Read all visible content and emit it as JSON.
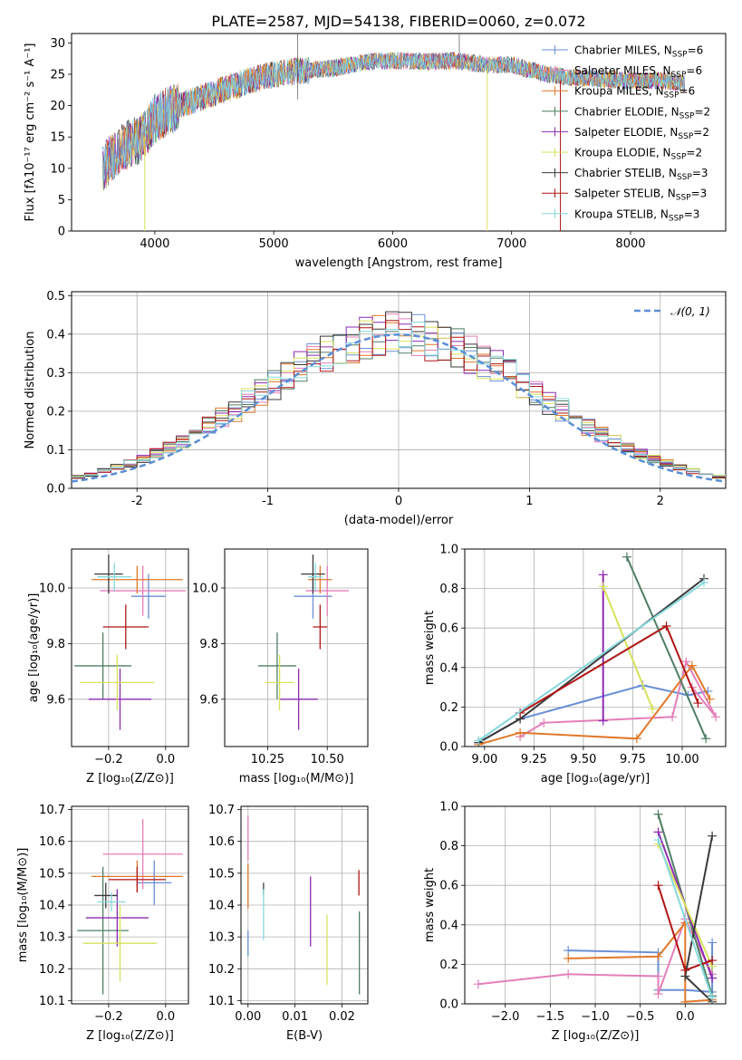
{
  "figure": {
    "title": "PLATE=2587, MJD=54138, FIBERID=0060, z=0.072"
  },
  "colors": {
    "chabrier_miles": "#6a8fd6",
    "salpeter_miles": "#e47fb8",
    "kroupa_miles": "#e0782a",
    "chabrier_elodie": "#4f7e64",
    "salpeter_elodie": "#8e2bb0",
    "kroupa_elodie": "#d8e25a",
    "chabrier_stelib": "#3a3a3a",
    "salpeter_stelib": "#b01616",
    "kroupa_stelib": "#86d8dc",
    "normal": "#5b8fd6"
  },
  "chart_data": [
    {
      "id": "spectrum",
      "type": "line",
      "xlabel": "wavelength [Angstrom, rest frame]",
      "ylabel": "Flux [fλ10⁻¹⁷ erg cm⁻² s⁻¹ A⁻¹]",
      "xlim": [
        3300,
        8800
      ],
      "ylim": [
        0,
        31.5
      ],
      "xticks": [
        4000,
        5000,
        6000,
        7000,
        8000
      ],
      "yticks": [
        0,
        5,
        10,
        15,
        20,
        25,
        30
      ],
      "legend_position": "top-right",
      "x_range_data": [
        3560,
        8460
      ],
      "series": [
        {
          "name": "Chabrier MILES, N_SSP=6",
          "label_main": "Chabrier MILES, N",
          "label_sub": "SSP",
          "label_end": "=6",
          "color_key": "chabrier_miles",
          "marker": "+"
        },
        {
          "name": "Salpeter MILES, N_SSP=6",
          "label_main": "Salpeter MILES, N",
          "label_sub": "SSP",
          "label_end": "=6",
          "color_key": "salpeter_miles",
          "marker": "+"
        },
        {
          "name": "Kroupa MILES, N_SSP=6",
          "label_main": "Kroupa MILES, N",
          "label_sub": "SSP",
          "label_end": "=6",
          "color_key": "kroupa_miles",
          "marker": "+"
        },
        {
          "name": "Chabrier ELODIE, N_SSP=2",
          "label_main": "Chabrier ELODIE, N",
          "label_sub": "SSP",
          "label_end": "=2",
          "color_key": "chabrier_elodie",
          "marker": "+"
        },
        {
          "name": "Salpeter ELODIE, N_SSP=2",
          "label_main": "Salpeter ELODIE, N",
          "label_sub": "SSP",
          "label_end": "=2",
          "color_key": "salpeter_elodie",
          "marker": "+"
        },
        {
          "name": "Kroupa ELODIE, N_SSP=2",
          "label_main": "Kroupa ELODIE, N",
          "label_sub": "SSP",
          "label_end": "=2",
          "color_key": "kroupa_elodie",
          "marker": "+"
        },
        {
          "name": "Chabrier STELIB, N_SSP=3",
          "label_main": "Chabrier STELIB, N",
          "label_sub": "SSP",
          "label_end": "=3",
          "color_key": "chabrier_stelib",
          "marker": "+"
        },
        {
          "name": "Salpeter STELIB, N_SSP=3",
          "label_main": "Salpeter STELIB, N",
          "label_sub": "SSP",
          "label_end": "=3",
          "color_key": "salpeter_stelib",
          "marker": "+"
        },
        {
          "name": "Kroupa STELIB, N_SSP=3",
          "label_main": "Kroupa STELIB, N",
          "label_sub": "SSP",
          "label_end": "=3",
          "color_key": "kroupa_stelib",
          "marker": "+"
        }
      ],
      "continuum": [
        [
          3560,
          10
        ],
        [
          3700,
          13
        ],
        [
          3900,
          15
        ],
        [
          4000,
          18
        ],
        [
          4200,
          20
        ],
        [
          4500,
          22
        ],
        [
          4800,
          24
        ],
        [
          5000,
          25
        ],
        [
          5200,
          25.5
        ],
        [
          5500,
          26
        ],
        [
          5800,
          27
        ],
        [
          6000,
          27.2
        ],
        [
          6300,
          27
        ],
        [
          6500,
          27.2
        ],
        [
          6800,
          26.5
        ],
        [
          7000,
          26.5
        ],
        [
          7300,
          25
        ],
        [
          7500,
          24.5
        ],
        [
          8000,
          24
        ],
        [
          8300,
          24
        ],
        [
          8460,
          23.5
        ]
      ]
    },
    {
      "id": "residuals",
      "type": "histogram",
      "xlabel": "(data-model)/error",
      "ylabel": "Normed distribution",
      "xlim": [
        -2.5,
        2.5
      ],
      "ylim": [
        0,
        0.51
      ],
      "xticks": [
        -2,
        -1,
        0,
        1,
        2
      ],
      "yticks": [
        0.0,
        0.1,
        0.2,
        0.3,
        0.4,
        0.5
      ],
      "grid": true,
      "bin_width": 0.1,
      "legend": [
        {
          "name": "N(0, 1)",
          "label": "𝒩(0, 1)",
          "color_key": "normal",
          "style": "dashed"
        }
      ],
      "legend_position": "top-right"
    },
    {
      "id": "age_vs_Z",
      "type": "errorbar",
      "xlabel": "Z [log₁₀(Z/Z⊙)]",
      "ylabel": "age  [log₁₀(age/yr)]",
      "xlim": [
        -0.33,
        0.08
      ],
      "ylim": [
        9.43,
        10.14
      ],
      "xticks": [
        -0.2,
        0.0
      ],
      "xticklabels": [
        "−0.2",
        "0.0"
      ],
      "yticks": [
        9.6,
        9.8,
        10.0
      ],
      "yticklabels": [
        "9.6",
        "9.8",
        "10.0"
      ],
      "grid": true,
      "points": [
        {
          "color_key": "chabrier_miles",
          "x": -0.06,
          "xerr": 0.06,
          "y": 9.97,
          "yerr": 0.08
        },
        {
          "color_key": "salpeter_miles",
          "x": -0.08,
          "xerr": 0.15,
          "y": 9.99,
          "yerr": 0.09
        },
        {
          "color_key": "kroupa_miles",
          "x": -0.1,
          "xerr": 0.16,
          "y": 10.03,
          "yerr": 0.05
        },
        {
          "color_key": "chabrier_elodie",
          "x": -0.22,
          "xerr": 0.1,
          "y": 9.72,
          "yerr": 0.12
        },
        {
          "color_key": "salpeter_elodie",
          "x": -0.16,
          "xerr": 0.11,
          "y": 9.6,
          "yerr": 0.11
        },
        {
          "color_key": "kroupa_elodie",
          "x": -0.17,
          "xerr": 0.13,
          "y": 9.66,
          "yerr": 0.1
        },
        {
          "color_key": "chabrier_stelib",
          "x": -0.2,
          "xerr": 0.05,
          "y": 10.05,
          "yerr": 0.07
        },
        {
          "color_key": "salpeter_stelib",
          "x": -0.14,
          "xerr": 0.08,
          "y": 9.86,
          "yerr": 0.08
        },
        {
          "color_key": "kroupa_stelib",
          "x": -0.18,
          "xerr": 0.06,
          "y": 10.04,
          "yerr": 0.05
        }
      ]
    },
    {
      "id": "age_vs_mass",
      "type": "errorbar",
      "xlabel": "mass [log₁₀(M/M⊙)]",
      "ylabel": "",
      "xlim": [
        10.07,
        10.67
      ],
      "ylim": [
        9.43,
        10.14
      ],
      "xticks": [
        10.25,
        10.5
      ],
      "xticklabels": [
        "10.25",
        "10.50"
      ],
      "yticks": [
        9.6,
        9.8,
        10.0
      ],
      "yticklabels": [
        "9.6",
        "9.8",
        "10.0"
      ],
      "grid": true,
      "points": [
        {
          "color_key": "chabrier_miles",
          "x": 10.44,
          "xerr": 0.08,
          "y": 9.97,
          "yerr": 0.08
        },
        {
          "color_key": "salpeter_miles",
          "x": 10.5,
          "xerr": 0.09,
          "y": 9.99,
          "yerr": 0.09
        },
        {
          "color_key": "kroupa_miles",
          "x": 10.47,
          "xerr": 0.05,
          "y": 10.03,
          "yerr": 0.05
        },
        {
          "color_key": "chabrier_elodie",
          "x": 10.29,
          "xerr": 0.08,
          "y": 9.72,
          "yerr": 0.12
        },
        {
          "color_key": "salpeter_elodie",
          "x": 10.38,
          "xerr": 0.08,
          "y": 9.6,
          "yerr": 0.11
        },
        {
          "color_key": "kroupa_elodie",
          "x": 10.3,
          "xerr": 0.06,
          "y": 9.66,
          "yerr": 0.1
        },
        {
          "color_key": "chabrier_stelib",
          "x": 10.44,
          "xerr": 0.05,
          "y": 10.05,
          "yerr": 0.07
        },
        {
          "color_key": "salpeter_stelib",
          "x": 10.47,
          "xerr": 0.03,
          "y": 9.86,
          "yerr": 0.08
        },
        {
          "color_key": "kroupa_stelib",
          "x": 10.45,
          "xerr": 0.03,
          "y": 10.04,
          "yerr": 0.05
        }
      ]
    },
    {
      "id": "weight_vs_age",
      "type": "line",
      "xlabel": "age  [log₁₀(age/yr)]",
      "ylabel": "mass weight",
      "xlim": [
        8.9,
        10.22
      ],
      "ylim": [
        0,
        1.0
      ],
      "xticks": [
        9.0,
        9.25,
        9.5,
        9.75,
        10.0
      ],
      "xticklabels": [
        "9.00",
        "9.25",
        "9.50",
        "9.75",
        "10.00"
      ],
      "yticks": [
        0.0,
        0.2,
        0.4,
        0.6,
        0.8,
        1.0
      ],
      "grid": true,
      "series": [
        {
          "color_key": "chabrier_miles",
          "x": [
            8.97,
            9.18,
            9.8,
            10.03,
            10.13
          ],
          "y": [
            0.02,
            0.14,
            0.31,
            0.26,
            0.28
          ]
        },
        {
          "color_key": "salpeter_miles",
          "x": [
            9.18,
            9.3,
            9.95,
            10.02,
            10.17,
            10.05
          ],
          "y": [
            0.05,
            0.12,
            0.15,
            0.43,
            0.15,
            0.3
          ]
        },
        {
          "color_key": "kroupa_miles",
          "x": [
            8.97,
            9.18,
            9.77,
            10.05,
            10.14
          ],
          "y": [
            0.01,
            0.07,
            0.04,
            0.41,
            0.24
          ]
        },
        {
          "color_key": "chabrier_elodie",
          "x": [
            9.72,
            10.12
          ],
          "y": [
            0.96,
            0.04
          ]
        },
        {
          "color_key": "salpeter_elodie",
          "x": [
            9.6,
            9.6
          ],
          "y": [
            0.87,
            0.13
          ]
        },
        {
          "color_key": "kroupa_elodie",
          "x": [
            9.6,
            9.85
          ],
          "y": [
            0.81,
            0.19
          ]
        },
        {
          "color_key": "chabrier_stelib",
          "x": [
            8.97,
            9.18,
            10.11
          ],
          "y": [
            0.02,
            0.14,
            0.85
          ]
        },
        {
          "color_key": "salpeter_stelib",
          "x": [
            9.18,
            9.92,
            10.08
          ],
          "y": [
            0.17,
            0.61,
            0.22
          ]
        },
        {
          "color_key": "kroupa_stelib",
          "x": [
            8.97,
            10.11
          ],
          "y": [
            0.03,
            0.83
          ]
        }
      ]
    },
    {
      "id": "mass_vs_Z",
      "type": "errorbar",
      "xlabel": "Z [log₁₀(Z/Z⊙)]",
      "ylabel": "mass [log₁₀(M/M⊙)]",
      "xlim": [
        -0.33,
        0.08
      ],
      "ylim": [
        10.09,
        10.71
      ],
      "xticks": [
        -0.2,
        0.0
      ],
      "xticklabels": [
        "−0.2",
        "0.0"
      ],
      "yticks": [
        10.1,
        10.2,
        10.3,
        10.4,
        10.5,
        10.6,
        10.7
      ],
      "yticklabels": [
        "10.1",
        "10.2",
        "10.3",
        "10.4",
        "10.5",
        "10.6",
        "10.7"
      ],
      "grid": true,
      "points": [
        {
          "color_key": "chabrier_miles",
          "x": -0.04,
          "xerr": 0.06,
          "y": 10.47,
          "yerr": 0.07
        },
        {
          "color_key": "salpeter_miles",
          "x": -0.08,
          "xerr": 0.14,
          "y": 10.56,
          "yerr": 0.11
        },
        {
          "color_key": "kroupa_miles",
          "x": -0.1,
          "xerr": 0.16,
          "y": 10.49,
          "yerr": 0.05
        },
        {
          "color_key": "chabrier_elodie",
          "x": -0.22,
          "xerr": 0.09,
          "y": 10.32,
          "yerr": 0.2
        },
        {
          "color_key": "salpeter_elodie",
          "x": -0.17,
          "xerr": 0.11,
          "y": 10.36,
          "yerr": 0.09
        },
        {
          "color_key": "kroupa_elodie",
          "x": -0.16,
          "xerr": 0.13,
          "y": 10.28,
          "yerr": 0.12
        },
        {
          "color_key": "chabrier_stelib",
          "x": -0.21,
          "xerr": 0.04,
          "y": 10.43,
          "yerr": 0.04
        },
        {
          "color_key": "salpeter_stelib",
          "x": -0.1,
          "xerr": 0.1,
          "y": 10.48,
          "yerr": 0.04
        },
        {
          "color_key": "kroupa_stelib",
          "x": -0.19,
          "xerr": 0.05,
          "y": 10.41,
          "yerr": 0.03
        }
      ]
    },
    {
      "id": "mass_vs_EBV",
      "type": "errorbar",
      "xlabel": "E(B-V)",
      "ylabel": "",
      "xlim": [
        -0.0015,
        0.0255
      ],
      "ylim": [
        10.09,
        10.71
      ],
      "xticks": [
        0.0,
        0.01,
        0.02
      ],
      "xticklabels": [
        "0.00",
        "0.01",
        "0.02"
      ],
      "yticks": [
        10.1,
        10.2,
        10.3,
        10.4,
        10.5,
        10.6,
        10.7
      ],
      "yticklabels": [
        "10.1",
        "10.2",
        "10.3",
        "10.4",
        "10.5",
        "10.6",
        "10.7"
      ],
      "grid": true,
      "points": [
        {
          "color_key": "chabrier_miles",
          "x": 0.0,
          "xerr": 0,
          "y": 10.28,
          "yerr": 0.04
        },
        {
          "color_key": "salpeter_miles",
          "x": 0.0,
          "xerr": 0,
          "y": 10.61,
          "yerr": 0.07
        },
        {
          "color_key": "kroupa_miles",
          "x": 0.0,
          "xerr": 0,
          "y": 10.46,
          "yerr": 0.07
        },
        {
          "color_key": "chabrier_elodie",
          "x": 0.0237,
          "xerr": 0,
          "y": 10.25,
          "yerr": 0.13
        },
        {
          "color_key": "salpeter_elodie",
          "x": 0.0133,
          "xerr": 0,
          "y": 10.38,
          "yerr": 0.11
        },
        {
          "color_key": "kroupa_elodie",
          "x": 0.0168,
          "xerr": 0,
          "y": 10.26,
          "yerr": 0.11
        },
        {
          "color_key": "chabrier_stelib",
          "x": 0.0033,
          "xerr": 0,
          "y": 10.45,
          "yerr": 0.02
        },
        {
          "color_key": "salpeter_stelib",
          "x": 0.0236,
          "xerr": 0,
          "y": 10.47,
          "yerr": 0.04
        },
        {
          "color_key": "kroupa_stelib",
          "x": 0.0033,
          "xerr": 0,
          "y": 10.37,
          "yerr": 0.08
        }
      ]
    },
    {
      "id": "weight_vs_Z",
      "type": "line",
      "xlabel": "Z [log₁₀(Z/Z⊙)]",
      "ylabel": "mass weight",
      "xlim": [
        -2.45,
        0.45
      ],
      "ylim": [
        0,
        1.0
      ],
      "xticks": [
        -2.0,
        -1.5,
        -1.0,
        -0.5,
        0.0
      ],
      "xticklabels": [
        "−2.0",
        "−1.5",
        "−1.0",
        "−0.5",
        "0.0"
      ],
      "yticks": [
        0.0,
        0.2,
        0.4,
        0.6,
        0.8,
        1.0
      ],
      "grid": true,
      "series": [
        {
          "color_key": "chabrier_miles",
          "x": [
            -1.3,
            -0.3,
            -0.3,
            0.0,
            0.3,
            0.3
          ],
          "y": [
            0.27,
            0.26,
            0.07,
            0.07,
            0.06,
            0.31
          ]
        },
        {
          "color_key": "salpeter_miles",
          "x": [
            -2.3,
            -1.3,
            -0.3,
            -0.3,
            0.0,
            0.3
          ],
          "y": [
            0.1,
            0.15,
            0.14,
            0.05,
            0.43,
            0.15
          ]
        },
        {
          "color_key": "kroupa_miles",
          "x": [
            -1.3,
            -0.3,
            0.0,
            0.0,
            0.3
          ],
          "y": [
            0.23,
            0.24,
            0.41,
            0.01,
            0.02
          ]
        },
        {
          "color_key": "chabrier_elodie",
          "x": [
            -0.3,
            0.3
          ],
          "y": [
            0.96,
            0.04
          ]
        },
        {
          "color_key": "salpeter_elodie",
          "x": [
            -0.3,
            0.3
          ],
          "y": [
            0.87,
            0.13
          ]
        },
        {
          "color_key": "kroupa_elodie",
          "x": [
            -0.3,
            0.3
          ],
          "y": [
            0.81,
            0.19
          ]
        },
        {
          "color_key": "chabrier_stelib",
          "x": [
            0.3,
            0.0,
            0.3
          ],
          "y": [
            0.01,
            0.14,
            0.85
          ]
        },
        {
          "color_key": "salpeter_stelib",
          "x": [
            -0.3,
            0.0,
            0.3
          ],
          "y": [
            0.6,
            0.17,
            0.22
          ]
        },
        {
          "color_key": "kroupa_stelib",
          "x": [
            -0.3,
            0.3
          ],
          "y": [
            0.83,
            0.03
          ]
        }
      ]
    }
  ]
}
